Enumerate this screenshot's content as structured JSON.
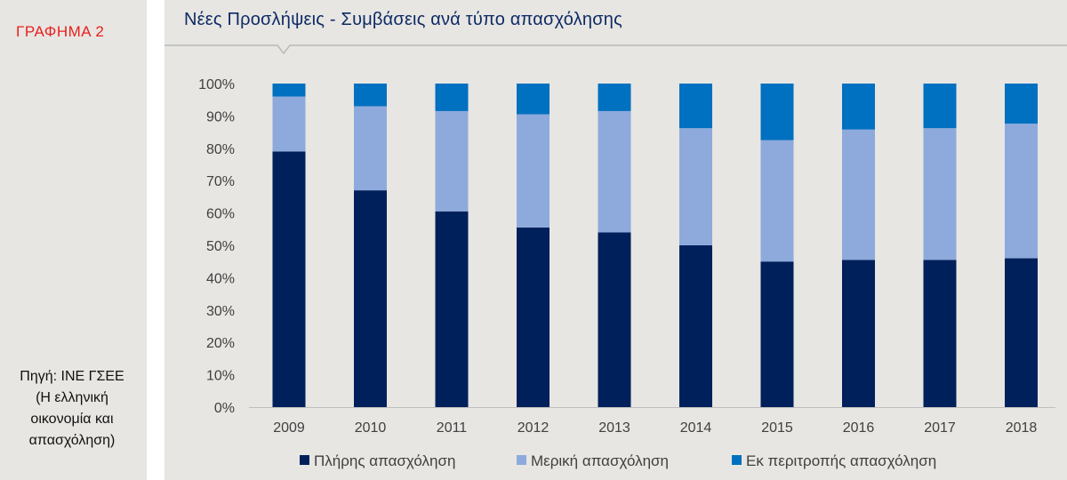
{
  "sidebar": {
    "title": "ΓΡΑΦΗΜΑ 2",
    "source": "Πηγή: ΙΝΕ ΓΣΕΕ\n(Η ελληνική\nοικονομία και\nαπασχόληση)"
  },
  "colors": {
    "full": "#00205b",
    "part": "#8eaadc",
    "rotation": "#0070c0",
    "heading": "#0e2a66",
    "accent": "#e8201e"
  },
  "chart_data": {
    "type": "bar",
    "stacked": true,
    "title": "Νέες Προσλήψεις - Συμβάσεις ανά τύπο απασχόλησης",
    "categories": [
      "2009",
      "2010",
      "2011",
      "2012",
      "2013",
      "2014",
      "2015",
      "2016",
      "2017",
      "2018"
    ],
    "yticks": [
      "0%",
      "10%",
      "20%",
      "30%",
      "40%",
      "50%",
      "60%",
      "70%",
      "80%",
      "90%",
      "100%"
    ],
    "ylim": [
      0,
      100
    ],
    "legend_position": "bottom",
    "grid": false,
    "series": [
      {
        "name": "Πλήρης απασχόληση",
        "color": "#00205b",
        "values": [
          79,
          67,
          60.5,
          55.5,
          54,
          50,
          45,
          45.5,
          45.5,
          46
        ]
      },
      {
        "name": "Μερική απασχόληση",
        "color": "#8eaadc",
        "values": [
          17,
          26,
          31,
          35,
          37.5,
          36.2,
          37.5,
          40.3,
          40.7,
          41.6
        ]
      },
      {
        "name": "Εκ περιτροπής απασχόληση",
        "color": "#0070c0",
        "values": [
          4,
          7,
          8.5,
          9.5,
          8.5,
          13.8,
          17.5,
          14.2,
          13.8,
          12.4
        ]
      }
    ]
  }
}
